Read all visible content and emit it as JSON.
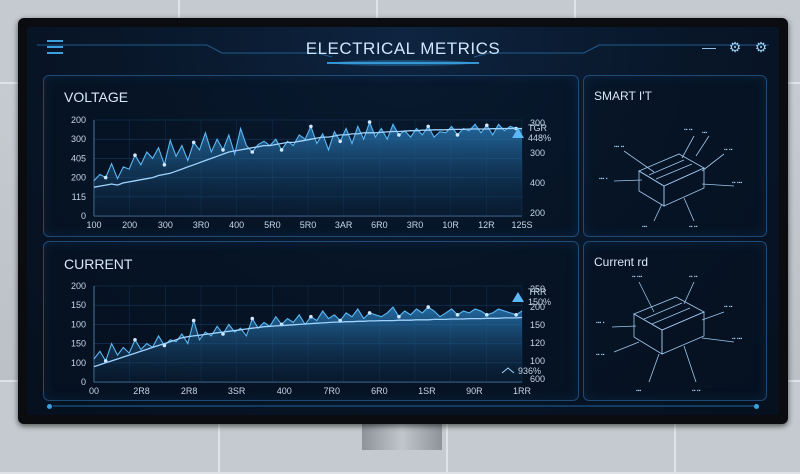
{
  "window": {
    "title": "ELECTRICAL METRICS"
  },
  "icons": {
    "menu": "hamburger-menu-icon",
    "minimize": "minus-icon",
    "settings": "gear-icon",
    "settings2": "gear-icon"
  },
  "colors": {
    "accent": "#3aa0e0",
    "line": "#57b4f0",
    "fill": "#1d5f94",
    "panel_border": "#1e4a76"
  },
  "voltage": {
    "title": "VOLTAGE",
    "legend": {
      "label": "TGR",
      "value": "448%"
    },
    "y_left": [
      "200",
      "300",
      "405",
      "200",
      "115",
      "0"
    ],
    "y_right": [
      "300",
      "300",
      "400",
      "200"
    ],
    "x_ticks": [
      "100",
      "200",
      "300",
      "3R0",
      "400",
      "5R0",
      "5R0",
      "3AR",
      "6R0",
      "3R0",
      "10R",
      "12R",
      "125S"
    ]
  },
  "current": {
    "title": "CURRENT",
    "legend": {
      "label": "TRR",
      "value": "150%"
    },
    "legend2": {
      "value": "936%"
    },
    "y_left": [
      "200",
      "150",
      "100",
      "150",
      "100",
      "0"
    ],
    "y_right": [
      "250",
      "200",
      "150",
      "120",
      "100",
      "600"
    ],
    "x_ticks": [
      "00",
      "2R8",
      "2R8",
      "3SR",
      "400",
      "7R0",
      "6R0",
      "1SR",
      "90R",
      "1RR"
    ]
  },
  "side_top": {
    "title": "SMART I'T"
  },
  "side_bottom": {
    "title": "Current rd"
  },
  "chart_data": [
    {
      "type": "area",
      "title": "VOLTAGE",
      "xlabel": "",
      "ylabel": "",
      "x_tick_labels": [
        "100",
        "200",
        "300",
        "3R0",
        "400",
        "5R0",
        "5R0",
        "3AR",
        "6R0",
        "3R0",
        "10R",
        "12R",
        "125S"
      ],
      "series": [
        {
          "values": [
            165,
            195,
            180,
            245,
            175,
            230,
            220,
            285,
            240,
            300,
            270,
            320,
            240,
            355,
            280,
            330,
            260,
            345,
            310,
            390,
            300,
            360,
            310,
            380,
            290,
            410,
            330,
            300,
            335,
            350,
            330,
            360,
            310,
            350,
            330,
            380,
            360,
            420,
            340,
            385,
            310,
            395,
            350,
            410,
            340,
            420,
            360,
            440,
            370,
            410,
            360,
            430,
            380,
            400,
            370,
            410,
            380,
            420,
            370,
            395,
            390,
            420,
            380,
            410,
            400,
            430,
            390,
            425,
            380,
            430,
            400,
            420,
            410,
            410
          ]
        },
        {
          "values": [
            135,
            140,
            145,
            150,
            145,
            155,
            160,
            165,
            170,
            175,
            180,
            190,
            195,
            200,
            210,
            220,
            230,
            240,
            250,
            260,
            270,
            280,
            290,
            300,
            305,
            310,
            315,
            320,
            325,
            330,
            330,
            335,
            340,
            345,
            345,
            350,
            355,
            360,
            365,
            370,
            370,
            375,
            380,
            380,
            385,
            385,
            390,
            390,
            390,
            392,
            394,
            396,
            396,
            398,
            400,
            400,
            402,
            402,
            404,
            404,
            404,
            406,
            406,
            406,
            408,
            408,
            408,
            408,
            409,
            409,
            410,
            410,
            410,
            410
          ]
        }
      ]
    },
    {
      "type": "area",
      "title": "CURRENT",
      "xlabel": "",
      "ylabel": "",
      "x_tick_labels": [
        "00",
        "2R8",
        "2R8",
        "3SR",
        "400",
        "7R0",
        "6R0",
        "1SR",
        "90R",
        "1RR"
      ],
      "series": [
        {
          "values": [
            60,
            80,
            55,
            100,
            70,
            90,
            75,
            110,
            85,
            100,
            90,
            120,
            95,
            110,
            105,
            125,
            100,
            160,
            110,
            130,
            120,
            145,
            125,
            150,
            130,
            140,
            120,
            165,
            140,
            155,
            145,
            170,
            150,
            165,
            155,
            175,
            150,
            170,
            160,
            185,
            165,
            175,
            160,
            180,
            170,
            190,
            165,
            180,
            175,
            170,
            180,
            195,
            170,
            185,
            175,
            190,
            180,
            195,
            185,
            170,
            180,
            190,
            175,
            185,
            180,
            190,
            185,
            175,
            180,
            190,
            185,
            180,
            175,
            185
          ]
        },
        {
          "values": [
            40,
            45,
            50,
            55,
            60,
            65,
            70,
            75,
            80,
            85,
            90,
            95,
            100,
            105,
            110,
            115,
            118,
            120,
            122,
            124,
            126,
            128,
            130,
            132,
            134,
            136,
            138,
            140,
            142,
            144,
            145,
            146,
            147,
            148,
            149,
            150,
            151,
            152,
            153,
            154,
            155,
            156,
            156,
            157,
            157,
            158,
            158,
            159,
            159,
            160,
            160,
            160,
            161,
            161,
            161,
            162,
            162,
            162,
            163,
            163,
            163,
            164,
            164,
            164,
            165,
            165,
            165,
            166,
            166,
            166,
            167,
            167,
            167,
            168
          ]
        }
      ]
    }
  ]
}
